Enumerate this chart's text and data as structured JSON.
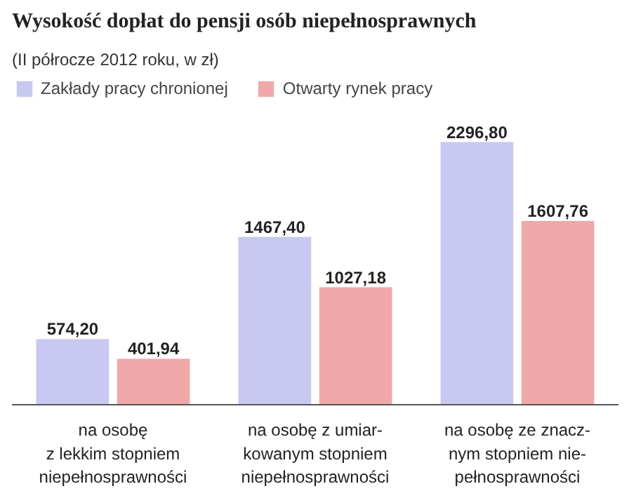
{
  "chart_data": {
    "type": "bar",
    "title": "Wysokość dopłat do pensji osób niepełnosprawnych",
    "subtitle": "(II półrocze 2012 roku, w zł)",
    "categories": [
      "na osobę\nz lekkim stopniem\nniepełnosprawności",
      "na osobę z umiar-\nkowanym stopniem\nniepełnosprawności",
      "na osobę ze znacz-\nnym stopniem nie-\npełnosprawności"
    ],
    "series": [
      {
        "name": "Zakłady pracy chronionej",
        "color": "#c8c8f0",
        "values": [
          574.2,
          1467.4,
          2296.8
        ],
        "value_labels": [
          "574,20",
          "1467,40",
          "2296,80"
        ]
      },
      {
        "name": "Otwarty rynek pracy",
        "color": "#f0a8a8",
        "values": [
          401.94,
          1027.18,
          1607.76
        ],
        "value_labels": [
          "401,94",
          "1027,18",
          "1607,76"
        ]
      }
    ],
    "legend": "top left"
  }
}
